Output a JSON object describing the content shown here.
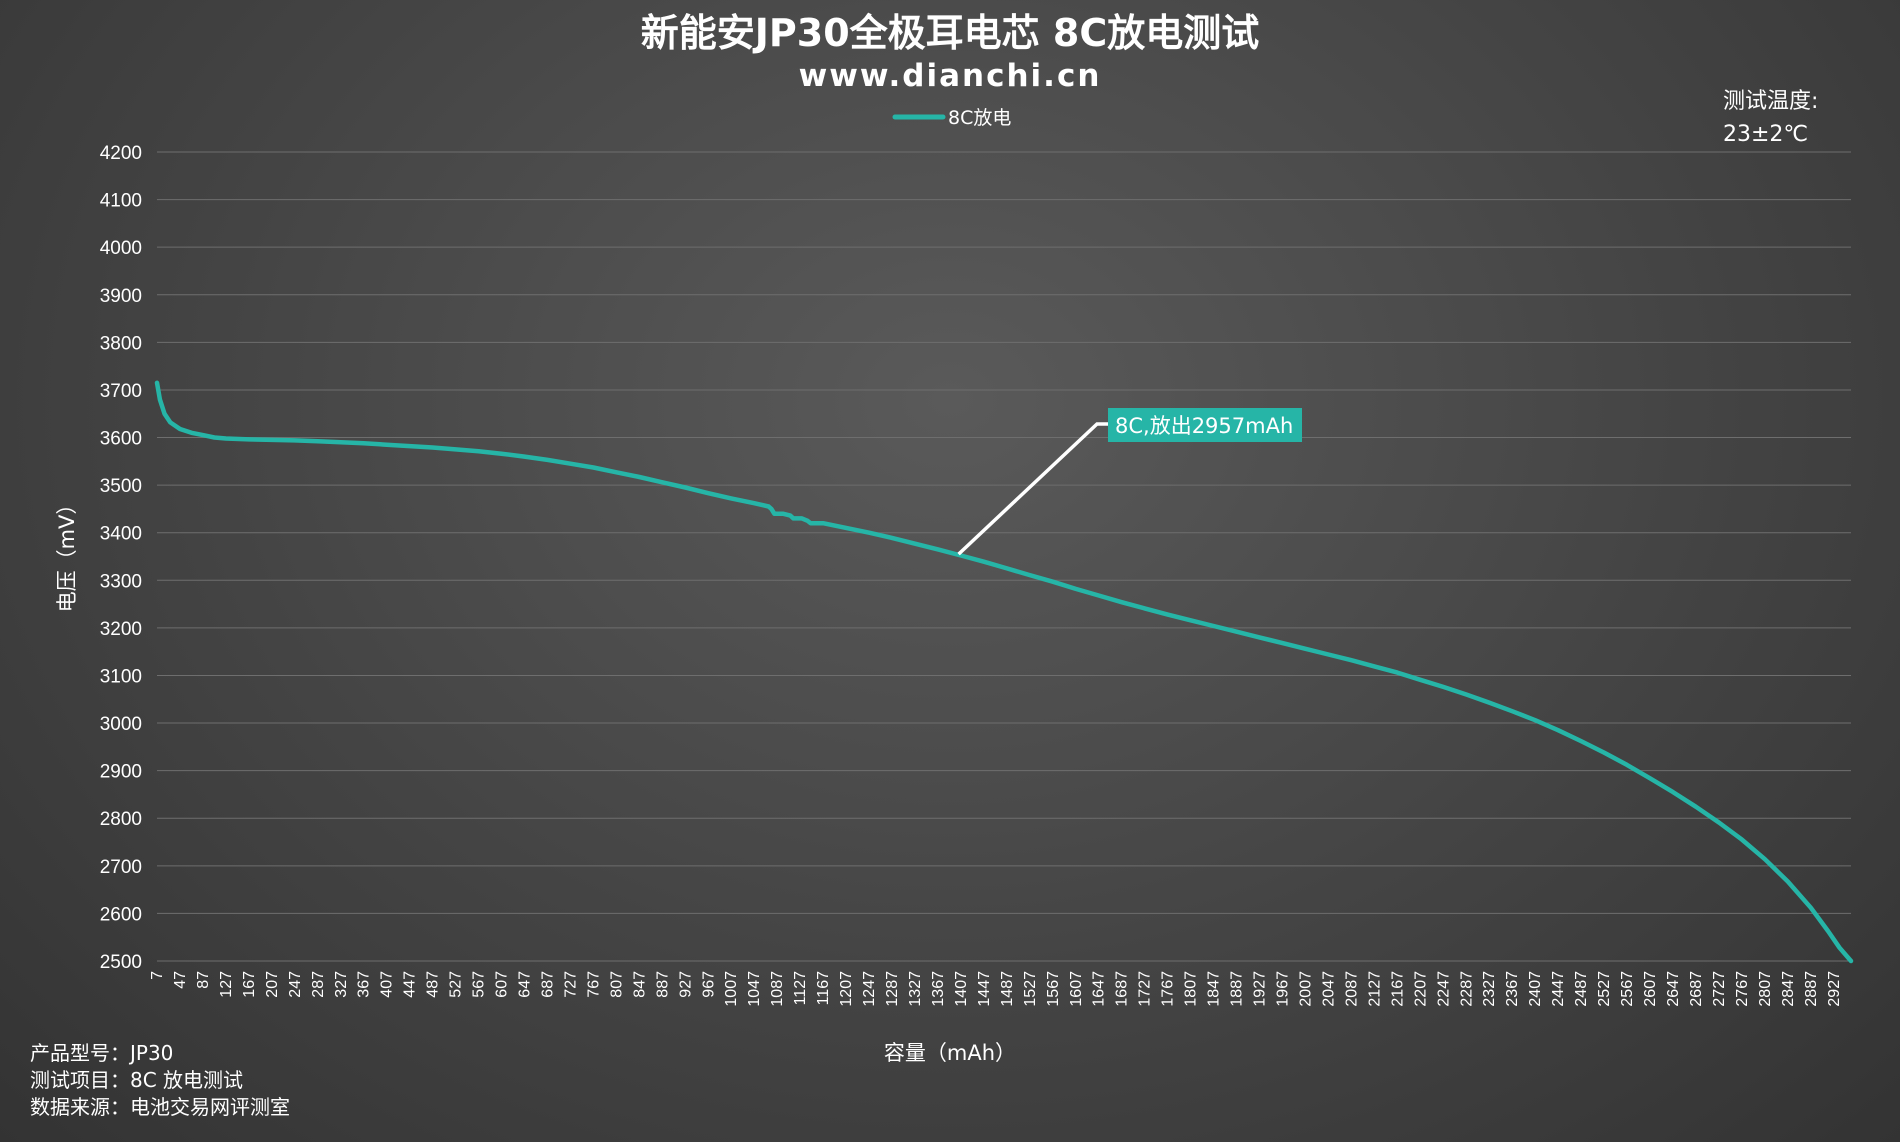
{
  "chart_data": {
    "type": "line",
    "title": "新能安JP30全极耳电芯 8C放电测试",
    "subtitle": "www.dianchi.cn",
    "xlabel": "容量（mAh）",
    "ylabel": "电压（mV）",
    "ylim": [
      2500,
      4200
    ],
    "xlim": [
      7,
      2957
    ],
    "y_ticks": [
      2500,
      2600,
      2700,
      2800,
      2900,
      3000,
      3100,
      3200,
      3300,
      3400,
      3500,
      3600,
      3700,
      3800,
      3900,
      4000,
      4100,
      4200
    ],
    "x_ticks": [
      7,
      47,
      87,
      127,
      167,
      207,
      247,
      287,
      327,
      367,
      407,
      447,
      487,
      527,
      567,
      607,
      647,
      687,
      727,
      767,
      807,
      847,
      887,
      927,
      967,
      1007,
      1047,
      1087,
      1127,
      1167,
      1207,
      1247,
      1287,
      1327,
      1367,
      1407,
      1447,
      1487,
      1527,
      1567,
      1607,
      1647,
      1687,
      1727,
      1767,
      1807,
      1847,
      1887,
      1927,
      1967,
      2007,
      2047,
      2087,
      2127,
      2167,
      2207,
      2247,
      2287,
      2327,
      2367,
      2407,
      2447,
      2487,
      2527,
      2567,
      2607,
      2647,
      2687,
      2727,
      2767,
      2807,
      2847,
      2887,
      2927
    ],
    "grid": true,
    "legend_position": "top-center",
    "series": [
      {
        "name": "8C放电",
        "color": "#26b5a7",
        "points": [
          [
            7,
            3715
          ],
          [
            12,
            3680
          ],
          [
            20,
            3650
          ],
          [
            30,
            3632
          ],
          [
            47,
            3618
          ],
          [
            67,
            3610
          ],
          [
            87,
            3605
          ],
          [
            107,
            3600
          ],
          [
            127,
            3598
          ],
          [
            167,
            3596
          ],
          [
            207,
            3595
          ],
          [
            247,
            3594
          ],
          [
            287,
            3592
          ],
          [
            327,
            3590
          ],
          [
            367,
            3588
          ],
          [
            407,
            3585
          ],
          [
            447,
            3582
          ],
          [
            487,
            3579
          ],
          [
            527,
            3575
          ],
          [
            567,
            3571
          ],
          [
            607,
            3566
          ],
          [
            647,
            3560
          ],
          [
            687,
            3553
          ],
          [
            727,
            3545
          ],
          [
            767,
            3537
          ],
          [
            807,
            3527
          ],
          [
            847,
            3517
          ],
          [
            887,
            3506
          ],
          [
            927,
            3495
          ],
          [
            967,
            3483
          ],
          [
            1007,
            3472
          ],
          [
            1047,
            3462
          ],
          [
            1072,
            3455
          ],
          [
            1077,
            3450
          ],
          [
            1082,
            3440
          ],
          [
            1097,
            3440
          ],
          [
            1110,
            3436
          ],
          [
            1115,
            3430
          ],
          [
            1130,
            3430
          ],
          [
            1140,
            3425
          ],
          [
            1145,
            3420
          ],
          [
            1167,
            3420
          ],
          [
            1207,
            3410
          ],
          [
            1247,
            3400
          ],
          [
            1287,
            3389
          ],
          [
            1327,
            3377
          ],
          [
            1367,
            3365
          ],
          [
            1407,
            3352
          ],
          [
            1447,
            3339
          ],
          [
            1487,
            3325
          ],
          [
            1527,
            3311
          ],
          [
            1567,
            3297
          ],
          [
            1607,
            3282
          ],
          [
            1647,
            3268
          ],
          [
            1687,
            3254
          ],
          [
            1727,
            3241
          ],
          [
            1767,
            3228
          ],
          [
            1807,
            3216
          ],
          [
            1847,
            3204
          ],
          [
            1887,
            3192
          ],
          [
            1927,
            3180
          ],
          [
            1967,
            3168
          ],
          [
            2007,
            3156
          ],
          [
            2047,
            3144
          ],
          [
            2087,
            3132
          ],
          [
            2127,
            3119
          ],
          [
            2167,
            3106
          ],
          [
            2207,
            3091
          ],
          [
            2247,
            3076
          ],
          [
            2287,
            3060
          ],
          [
            2327,
            3043
          ],
          [
            2367,
            3025
          ],
          [
            2407,
            3006
          ],
          [
            2447,
            2985
          ],
          [
            2487,
            2962
          ],
          [
            2527,
            2938
          ],
          [
            2567,
            2912
          ],
          [
            2607,
            2884
          ],
          [
            2647,
            2855
          ],
          [
            2687,
            2824
          ],
          [
            2727,
            2791
          ],
          [
            2767,
            2755
          ],
          [
            2807,
            2714
          ],
          [
            2847,
            2667
          ],
          [
            2887,
            2612
          ],
          [
            2917,
            2563
          ],
          [
            2937,
            2528
          ],
          [
            2957,
            2500
          ]
        ]
      }
    ],
    "annotations": [
      {
        "text": "8C,放出2957mAh",
        "x": 1403,
        "y": 3355
      }
    ]
  },
  "notes": {
    "temperature_label": "测试温度:",
    "temperature_value": "23±2℃",
    "product": "产品型号：JP30",
    "test_item": "测试项目：8C 放电测试",
    "source": "数据来源：电池交易网评测室"
  }
}
